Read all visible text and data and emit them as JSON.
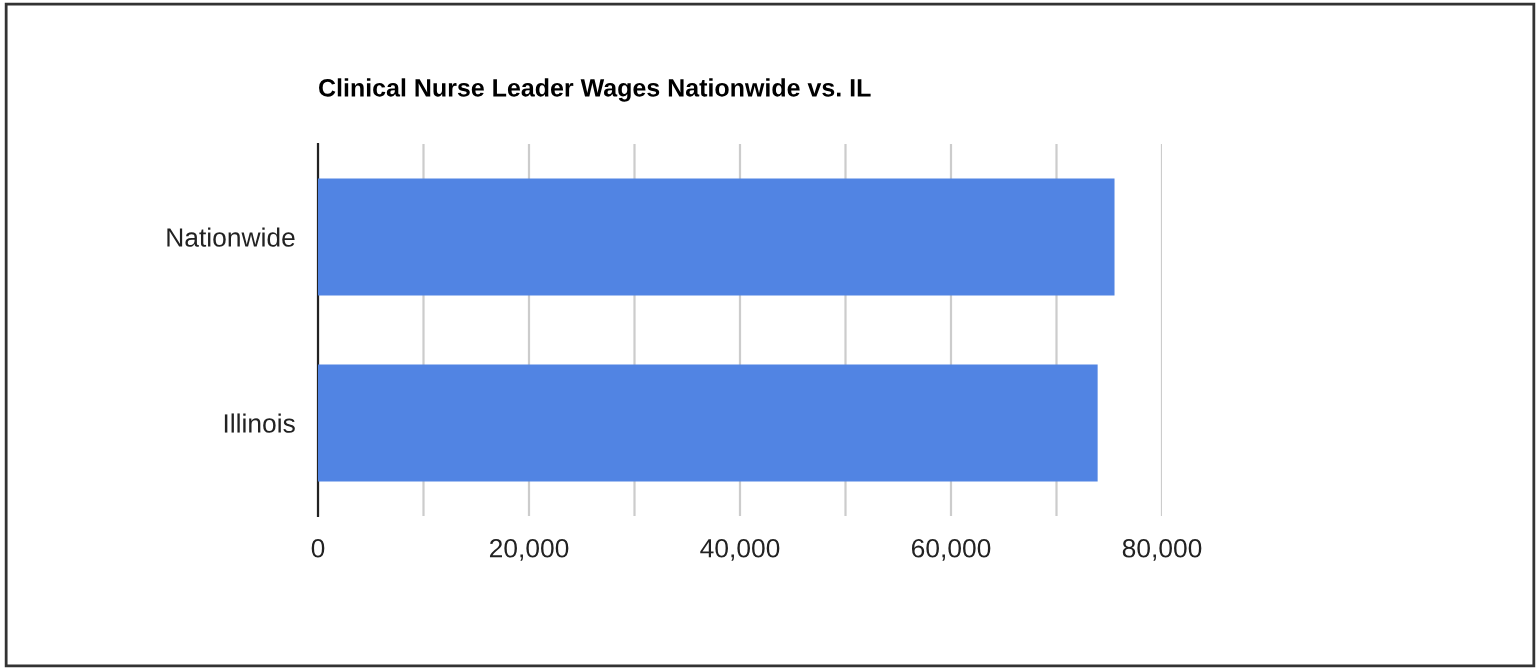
{
  "chart_data": {
    "type": "bar",
    "orientation": "horizontal",
    "title": "Clinical Nurse Leader Wages Nationwide vs. IL",
    "categories": [
      "Nationwide",
      "Illinois"
    ],
    "series": [
      {
        "color": "#5184e3",
        "values": [
          75500,
          73900
        ]
      }
    ],
    "xlim": [
      0,
      80000
    ],
    "xticks": [
      0,
      {
        "value": 10000,
        "label": null
      },
      {
        "value": 20000,
        "label": "20,000"
      },
      {
        "value": 30000,
        "label": null
      },
      {
        "value": 40000,
        "label": "40,000"
      },
      {
        "value": 50000,
        "label": null
      },
      {
        "value": 60000,
        "label": "60,000"
      },
      {
        "value": 70000,
        "label": null
      },
      {
        "value": 80000,
        "label": "80,000"
      }
    ],
    "grid": "x",
    "legend": false
  }
}
